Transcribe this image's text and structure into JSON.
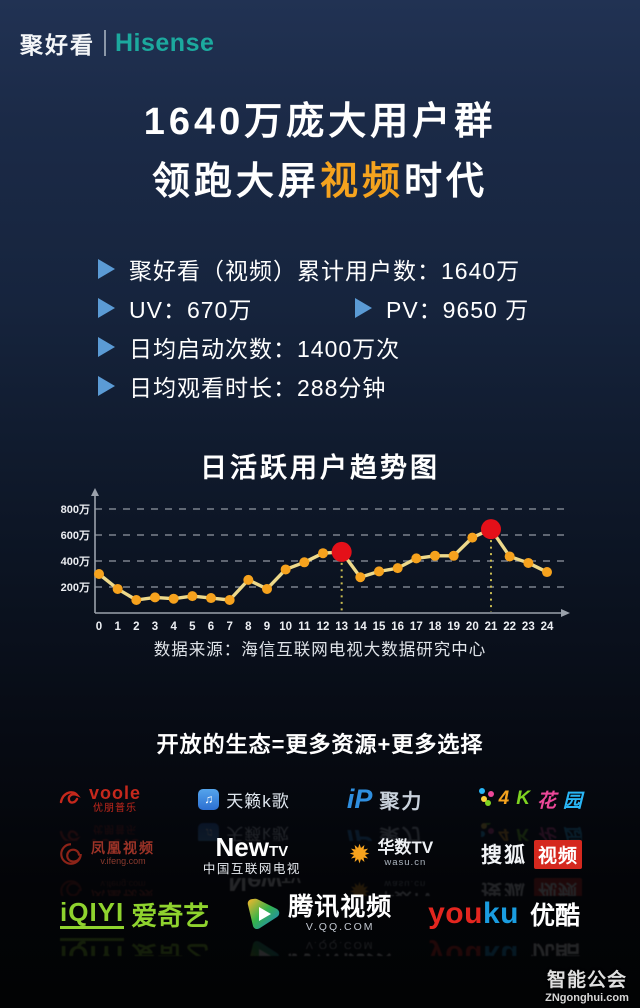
{
  "colors": {
    "background_top": "#1d2d4c",
    "background_bottom": "#040507",
    "accent_orange": "#f5a31e",
    "bullet_blue": "#5b9bd5",
    "hisense_teal": "#1ca99e",
    "chart_line": "#eed98a",
    "chart_marker": "#f6a21d",
    "chart_highlight_red": "#e41019",
    "chart_grid": "#8f96a0"
  },
  "header": {
    "brand_cn": "聚好看",
    "brand_en": "Hisense"
  },
  "title": {
    "line1": "1640万庞大用户群",
    "line2_pre": "领跑大屏",
    "line2_highlight": "视频",
    "line2_post": "时代"
  },
  "stats": {
    "cumulative": "聚好看（视频）累计用户数：1640万",
    "uv": "UV：670万",
    "pv": "PV：9650 万",
    "daily_launches": "日均启动次数：1400万次",
    "daily_watch_time": "日均观看时长：288分钟"
  },
  "chart_data": {
    "type": "line",
    "title": "日活跃用户趋势图",
    "x": [
      0,
      1,
      2,
      3,
      4,
      5,
      6,
      7,
      8,
      9,
      10,
      11,
      12,
      13,
      14,
      15,
      16,
      17,
      18,
      19,
      20,
      21,
      22,
      23,
      24
    ],
    "values": [
      300,
      185,
      100,
      120,
      110,
      130,
      115,
      100,
      255,
      185,
      335,
      390,
      460,
      470,
      275,
      320,
      345,
      420,
      440,
      440,
      580,
      645,
      435,
      385,
      315
    ],
    "unit": "万",
    "highlight_x": [
      13,
      21
    ],
    "yticks": [
      200,
      400,
      600,
      800
    ],
    "ytick_labels": [
      "200万",
      "400万",
      "600万",
      "800万"
    ],
    "ylim": [
      0,
      900
    ],
    "xlabel": "",
    "ylabel": "",
    "grid": "dashed-horizontal",
    "legend": "none",
    "source": "数据来源：海信互联网电视大数据研究中心"
  },
  "ecosystem": {
    "title": "开放的生态=更多资源+更多选择",
    "partners": {
      "voole": {
        "name": "voole",
        "sub": "优朋普乐"
      },
      "tianlai": {
        "icon": "music-note-icon",
        "name": "天籁k歌"
      },
      "juli": {
        "icon_text": "iP",
        "name": "聚力"
      },
      "fourk": {
        "c1": "4",
        "c2": "K",
        "c3": "花",
        "c4": "园"
      },
      "ifeng": {
        "name": "凤凰视频",
        "sub": "v.ifeng.com"
      },
      "newtv": {
        "name_main": "New",
        "name_tv": "TV",
        "sub": "中国互联网电视"
      },
      "wasu": {
        "icon": "starburst-icon",
        "name": "华数TV",
        "sub": "wasu.cn"
      },
      "sohu": {
        "name": "搜狐",
        "boxed": "视频"
      },
      "iqiyi": {
        "name": "iQIYI",
        "cn": "爱奇艺"
      },
      "tencent": {
        "icon": "play-button-icon",
        "name": "腾讯视频",
        "sub": "V.QQ.COM"
      },
      "youku": {
        "c1": "you",
        "c2": "ku",
        "cn": "优酷"
      }
    }
  },
  "watermark": {
    "logo": "智能公会",
    "url": "ZNgonghui.com"
  }
}
